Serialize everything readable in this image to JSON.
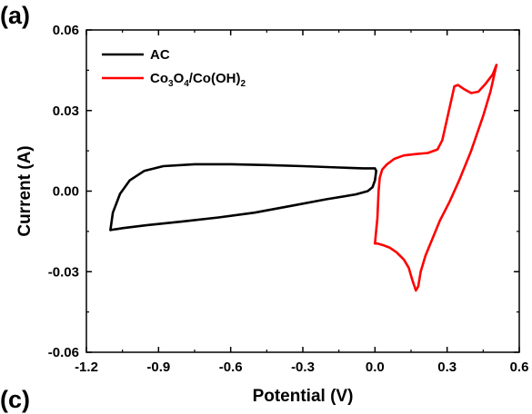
{
  "panel_labels": {
    "top": "(a)",
    "bottom": "(c)"
  },
  "chart_data": {
    "type": "line",
    "xlabel": "Potential (V)",
    "ylabel": "Current (A)",
    "xlim": [
      -1.2,
      0.6
    ],
    "ylim": [
      -0.06,
      0.06
    ],
    "xticks": [
      -1.2,
      -0.9,
      -0.6,
      -0.3,
      0.0,
      0.3,
      0.6
    ],
    "xtick_labels": [
      "-1.2",
      "-0.9",
      "-0.6",
      "-0.3",
      "0.0",
      "0.3",
      "0.6"
    ],
    "yticks": [
      -0.06,
      -0.03,
      0.0,
      0.03,
      0.06
    ],
    "ytick_labels": [
      "-0.06",
      "-0.03",
      "0.00",
      "0.03",
      "0.06"
    ],
    "grid": false,
    "legend_position": "top-left",
    "series": [
      {
        "name": "AC",
        "color": "#000000",
        "points": [
          [
            -1.1,
            -0.0145
          ],
          [
            -1.09,
            -0.008
          ],
          [
            -1.06,
            -0.001
          ],
          [
            -1.02,
            0.004
          ],
          [
            -0.96,
            0.0075
          ],
          [
            -0.88,
            0.0093
          ],
          [
            -0.75,
            0.01
          ],
          [
            -0.6,
            0.01
          ],
          [
            -0.45,
            0.0097
          ],
          [
            -0.3,
            0.0093
          ],
          [
            -0.15,
            0.0088
          ],
          [
            -0.05,
            0.0085
          ],
          [
            0.0,
            0.0085
          ],
          [
            0.005,
            0.0075
          ],
          [
            0.0,
            0.004
          ],
          [
            -0.01,
            0.0015
          ],
          [
            -0.03,
            0.0
          ],
          [
            -0.08,
            -0.0012
          ],
          [
            -0.2,
            -0.003
          ],
          [
            -0.35,
            -0.0055
          ],
          [
            -0.5,
            -0.008
          ],
          [
            -0.65,
            -0.0098
          ],
          [
            -0.8,
            -0.0113
          ],
          [
            -0.95,
            -0.0127
          ],
          [
            -1.05,
            -0.0138
          ],
          [
            -1.1,
            -0.0145
          ]
        ]
      },
      {
        "name": "Co₃O₄/Co(OH)₂",
        "name_parts": [
          "Co",
          "3",
          "O",
          "4",
          "/Co(OH)",
          "2"
        ],
        "color": "#ff0000",
        "points": [
          [
            0.0,
            -0.0195
          ],
          [
            0.01,
            -0.0195
          ],
          [
            0.03,
            -0.02
          ],
          [
            0.06,
            -0.021
          ],
          [
            0.09,
            -0.0228
          ],
          [
            0.12,
            -0.0255
          ],
          [
            0.14,
            -0.0285
          ],
          [
            0.155,
            -0.033
          ],
          [
            0.17,
            -0.037
          ],
          [
            0.18,
            -0.0355
          ],
          [
            0.19,
            -0.03
          ],
          [
            0.21,
            -0.024
          ],
          [
            0.24,
            -0.0175
          ],
          [
            0.27,
            -0.011
          ],
          [
            0.31,
            -0.004
          ],
          [
            0.35,
            0.004
          ],
          [
            0.4,
            0.015
          ],
          [
            0.45,
            0.028
          ],
          [
            0.48,
            0.037
          ],
          [
            0.5,
            0.045
          ],
          [
            0.505,
            0.047
          ],
          [
            0.49,
            0.0435
          ],
          [
            0.46,
            0.04
          ],
          [
            0.43,
            0.037
          ],
          [
            0.4,
            0.0365
          ],
          [
            0.37,
            0.038
          ],
          [
            0.345,
            0.0395
          ],
          [
            0.33,
            0.039
          ],
          [
            0.32,
            0.035
          ],
          [
            0.3,
            0.027
          ],
          [
            0.28,
            0.019
          ],
          [
            0.26,
            0.0155
          ],
          [
            0.22,
            0.0142
          ],
          [
            0.17,
            0.0138
          ],
          [
            0.12,
            0.0133
          ],
          [
            0.08,
            0.012
          ],
          [
            0.05,
            0.01
          ],
          [
            0.03,
            0.008
          ],
          [
            0.02,
            0.005
          ],
          [
            0.015,
            0.0
          ],
          [
            0.01,
            -0.01
          ],
          [
            0.0,
            -0.0195
          ]
        ]
      }
    ]
  }
}
